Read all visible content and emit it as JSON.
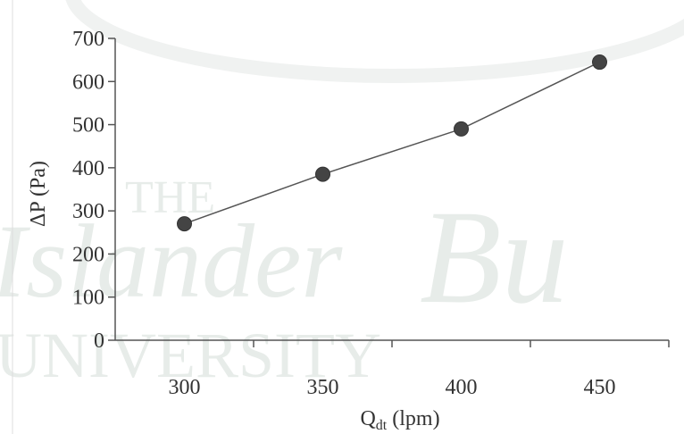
{
  "watermark": {
    "line1": "THE",
    "line2": "Islander",
    "line3": "Bu",
    "line4": "UNIVERSITY"
  },
  "chart_data": {
    "type": "line",
    "title": "",
    "xlabel_main": "Q",
    "xlabel_sub": "dt",
    "xlabel_unit": " (lpm)",
    "ylabel": "ΔP (Pa)",
    "x": [
      300,
      350,
      400,
      450
    ],
    "series": [
      {
        "values": [
          270,
          385,
          490,
          645
        ]
      }
    ],
    "xlim": [
      275,
      475
    ],
    "ylim": [
      0,
      700
    ],
    "xticks": [
      300,
      350,
      400,
      450
    ],
    "yticks": [
      0,
      100,
      200,
      300,
      400,
      500,
      600,
      700
    ],
    "grid": false,
    "line_color": "#555555",
    "marker_color": "#444444"
  }
}
